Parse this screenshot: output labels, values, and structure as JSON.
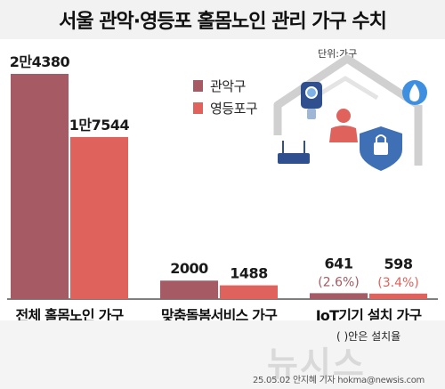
{
  "title": "서울 관악·영등포 홀몸노인 관리 가구 수치",
  "unit": "단위:가구",
  "note": "( )안은 설치율",
  "watermark": "뉴시스",
  "credit": "25.05.02 안지혜 기자 hokma@newsis.com",
  "colors": {
    "gwanak": "#a65a63",
    "yeongdeungpo": "#e0625c"
  },
  "icons": [
    "house-icon",
    "camera-icon",
    "person-icon",
    "router-icon",
    "lock-shield-icon",
    "fire-icon"
  ],
  "chart_data": {
    "type": "bar",
    "categories": [
      "전체 홀몸노인 가구",
      "맞춤돌봄서비스 가구",
      "IoT기기 설치 가구"
    ],
    "series": [
      {
        "name": "관악구",
        "values": [
          24380,
          2000,
          641
        ],
        "labels": [
          "2만4380",
          "2000",
          "641"
        ],
        "sublabels": [
          "",
          "",
          "(2.6%)"
        ]
      },
      {
        "name": "영등포구",
        "values": [
          17544,
          1488,
          598
        ],
        "labels": [
          "1만7544",
          "1488",
          "598"
        ],
        "sublabels": [
          "",
          "",
          "(3.4%)"
        ]
      }
    ]
  }
}
